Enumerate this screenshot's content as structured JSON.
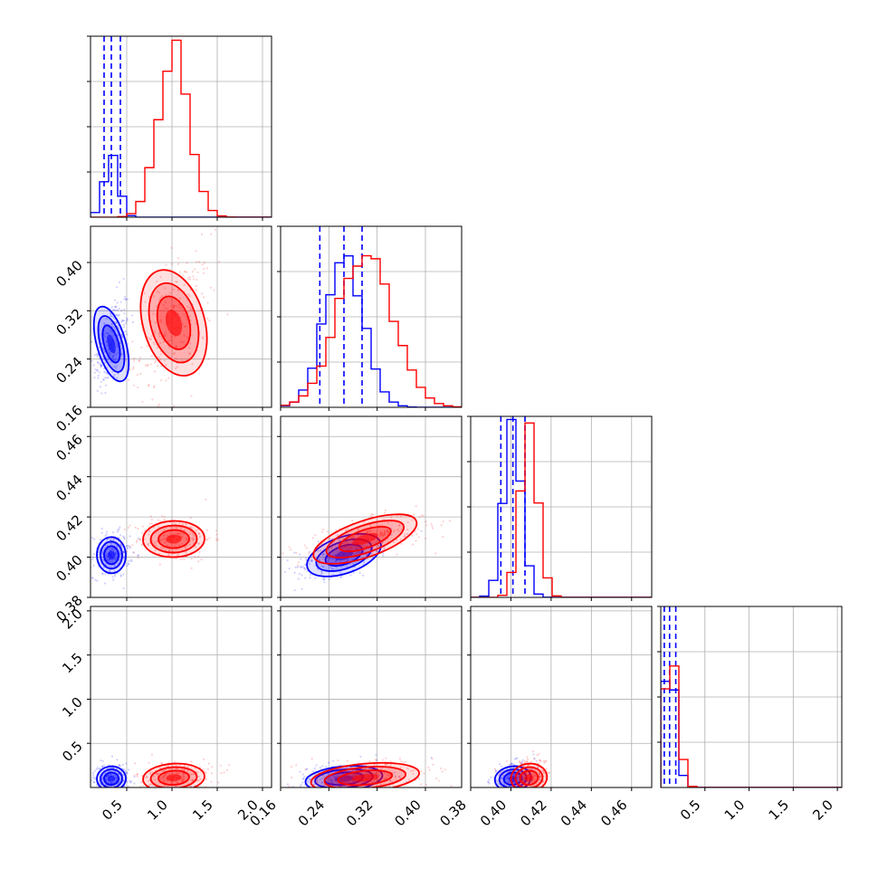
{
  "chart_data": {
    "type": "corner",
    "parameters": [
      {
        "range": [
          0.1,
          2.1
        ],
        "ticks": [
          0.5,
          1.0,
          1.5,
          2.0
        ],
        "tick_labels": [
          "0.5",
          "1.0",
          "1.5",
          "2.0"
        ]
      },
      {
        "range": [
          0.16,
          0.46
        ],
        "ticks": [
          0.16,
          0.24,
          0.32,
          0.4
        ],
        "tick_labels": [
          "0.16",
          "0.24",
          "0.32",
          "0.40"
        ]
      },
      {
        "range": [
          0.38,
          0.47
        ],
        "ticks": [
          0.38,
          0.4,
          0.42,
          0.44,
          0.46
        ],
        "tick_labels": [
          "0.38",
          "0.40",
          "0.42",
          "0.44",
          "0.46"
        ]
      },
      {
        "range": [
          0.0,
          2.05
        ],
        "ticks": [
          0.5,
          1.0,
          1.5,
          2.0
        ],
        "tick_labels": [
          "0.5",
          "1.0",
          "1.5",
          "2.0"
        ]
      }
    ],
    "series": [
      {
        "color": "#0000ff",
        "means": [
          0.33,
          0.265,
          0.401,
          0.1
        ],
        "sds": [
          0.08,
          0.032,
          0.0045,
          0.07
        ],
        "quantiles": [
          [
            0.25,
            0.33,
            0.43
          ],
          [
            0.225,
            0.265,
            0.295
          ],
          [
            0.395,
            0.401,
            0.407
          ],
          [
            0.04,
            0.1,
            0.17
          ]
        ],
        "hist_peaks": [
          0.35,
          0.85,
          0.97,
          0.75
        ]
      },
      {
        "color": "#ff0000",
        "means": [
          1.02,
          0.3,
          0.409,
          0.11
        ],
        "sds": [
          0.17,
          0.045,
          0.0045,
          0.08
        ],
        "quantiles": [
          [
            0.85,
            1.02,
            1.19
          ],
          [
            0.255,
            0.3,
            0.345
          ],
          [
            0.404,
            0.409,
            0.414
          ],
          [
            0.05,
            0.11,
            0.19
          ]
        ],
        "hist_peaks": [
          0.94,
          0.88,
          0.93,
          0.77
        ]
      }
    ]
  }
}
